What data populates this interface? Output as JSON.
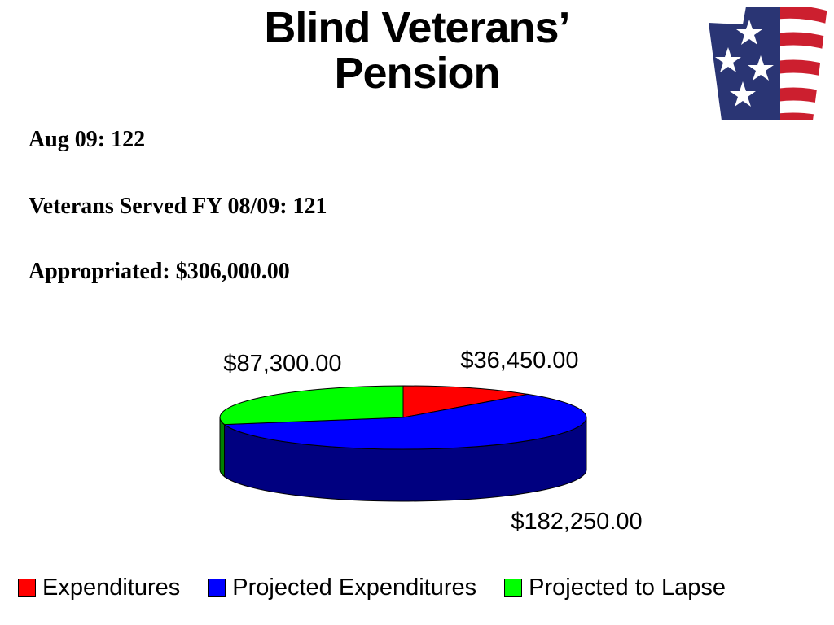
{
  "title": [
    "Blind Veterans’",
    "Pension"
  ],
  "info": {
    "line1": "Aug 09: 122",
    "line2": "Veterans Served FY 08/09: 121",
    "line3": "Appropriated: $306,000.00"
  },
  "logo_icon": "flag-stars-icon",
  "chart_data": {
    "type": "pie",
    "style": "3d",
    "categories": [
      "Expenditures",
      "Projected Expenditures",
      "Projected to Lapse"
    ],
    "values": [
      36450,
      182250,
      87300
    ],
    "labels": [
      "$36,450.00",
      "$182,250.00",
      "$87,300.00"
    ],
    "colors": [
      "#ff0000",
      "#0000ff",
      "#00ff00"
    ],
    "side_colors": [
      "#800000",
      "#000080",
      "#008000"
    ],
    "legend": "bottom"
  }
}
